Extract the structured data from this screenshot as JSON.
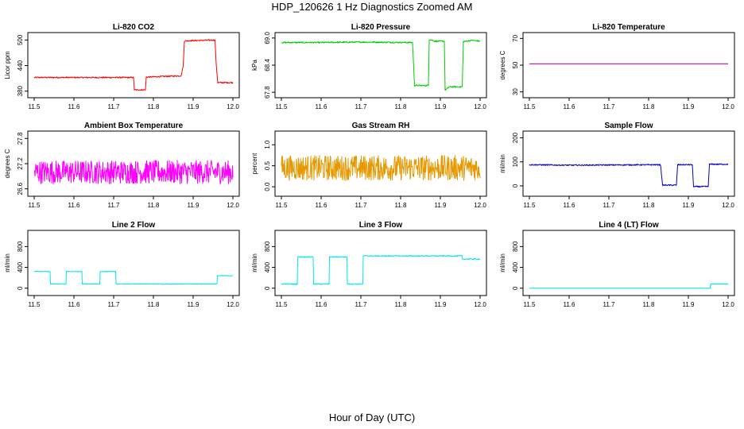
{
  "figure": {
    "title": "HDP_120626  1 Hz Diagnostics Zoomed AM",
    "xlabel": "Hour of Day (UTC)"
  },
  "chart_data": [
    {
      "id": "co2",
      "type": "line",
      "title": "Li-820 CO2",
      "ylabel": "Licor ppm",
      "color": "#ff0000",
      "xlim": [
        11.5,
        12.0
      ],
      "ylim": [
        372,
        510
      ],
      "xticks": [
        11.5,
        11.6,
        11.7,
        11.8,
        11.9,
        12.0
      ],
      "yticks": [
        380,
        440,
        500
      ],
      "noise": 1.5,
      "series": [
        {
          "values": [
            [
              11.5,
              412
            ],
            [
              11.75,
              412
            ],
            [
              11.752,
              383
            ],
            [
              11.78,
              383
            ],
            [
              11.782,
              413
            ],
            [
              11.87,
              416
            ],
            [
              11.875,
              440
            ],
            [
              11.878,
              498
            ],
            [
              11.955,
              500
            ],
            [
              11.958,
              443
            ],
            [
              11.962,
              400
            ],
            [
              12.0,
              400
            ]
          ]
        }
      ]
    },
    {
      "id": "pressure",
      "type": "line",
      "title": "Li-820 Pressure",
      "ylabel": "kPa",
      "color": "#00cc00",
      "xlim": [
        11.5,
        12.0
      ],
      "ylim": [
        67.75,
        69.05
      ],
      "xticks": [
        11.5,
        11.6,
        11.7,
        11.8,
        11.9,
        12.0
      ],
      "yticks": [
        67.8,
        68.4,
        69.0
      ],
      "ytick_labels": [
        "67.8",
        "68.4",
        "69.0"
      ],
      "noise": 0.015,
      "series": [
        {
          "values": [
            [
              11.5,
              68.9
            ],
            [
              11.6,
              68.9
            ],
            [
              11.7,
              68.91
            ],
            [
              11.83,
              68.9
            ],
            [
              11.835,
              67.95
            ],
            [
              11.87,
              67.95
            ],
            [
              11.872,
              68.97
            ],
            [
              11.88,
              68.95
            ],
            [
              11.885,
              68.93
            ],
            [
              11.91,
              68.93
            ],
            [
              11.912,
              67.85
            ],
            [
              11.92,
              67.9
            ],
            [
              11.922,
              67.92
            ],
            [
              11.955,
              67.92
            ],
            [
              11.958,
              68.92
            ],
            [
              11.98,
              68.95
            ],
            [
              12.0,
              68.93
            ]
          ]
        }
      ]
    },
    {
      "id": "temperature",
      "type": "line",
      "title": "Li-820 Temperature",
      "ylabel": "degrees C",
      "color": "#cc00cc",
      "xlim": [
        11.5,
        12.0
      ],
      "ylim": [
        28,
        72
      ],
      "xticks": [
        11.5,
        11.6,
        11.7,
        11.8,
        11.9,
        12.0
      ],
      "yticks": [
        30,
        50,
        70
      ],
      "noise": 0,
      "series": [
        {
          "values": [
            [
              11.5,
              51
            ],
            [
              12.0,
              51
            ]
          ]
        }
      ]
    },
    {
      "id": "ambient",
      "type": "line",
      "title": "Ambient Box Temperature",
      "ylabel": "degrees C",
      "color": "#ff00ff",
      "xlim": [
        11.5,
        12.0
      ],
      "ylim": [
        26.5,
        27.9
      ],
      "xticks": [
        11.5,
        11.6,
        11.7,
        11.8,
        11.9,
        12.0
      ],
      "yticks": [
        26.6,
        27.2,
        27.8
      ],
      "ytick_labels": [
        "26.6",
        "27.2",
        "27.8"
      ],
      "noise": 0.28,
      "series": [
        {
          "values": [
            [
              11.5,
              27.0
            ],
            [
              12.0,
              27.0
            ]
          ]
        }
      ]
    },
    {
      "id": "rh",
      "type": "line",
      "title": "Gas Stream RH",
      "ylabel": "percent",
      "color": "#e69900",
      "xlim": [
        11.5,
        12.0
      ],
      "ylim": [
        -0.15,
        1.25
      ],
      "xticks": [
        11.5,
        11.6,
        11.7,
        11.8,
        11.9,
        12.0
      ],
      "yticks": [
        0.0,
        0.5,
        1.0
      ],
      "ytick_labels": [
        "0.0",
        "0.5",
        "1.0"
      ],
      "noise": 0.3,
      "series": [
        {
          "values": [
            [
              11.5,
              0.45
            ],
            [
              12.0,
              0.45
            ]
          ]
        }
      ]
    },
    {
      "id": "sampleflow",
      "type": "line",
      "title": "Sample Flow",
      "ylabel": "ml/min",
      "color": "#0000cc",
      "xlim": [
        11.5,
        12.0
      ],
      "ylim": [
        -30,
        215
      ],
      "xticks": [
        11.5,
        11.6,
        11.7,
        11.8,
        11.9,
        12.0
      ],
      "yticks": [
        0,
        100,
        200
      ],
      "noise": 2.5,
      "series": [
        {
          "values": [
            [
              11.5,
              88
            ],
            [
              11.6,
              86
            ],
            [
              11.7,
              87
            ],
            [
              11.83,
              88
            ],
            [
              11.835,
              3
            ],
            [
              11.87,
              3
            ],
            [
              11.873,
              88
            ],
            [
              11.91,
              88
            ],
            [
              11.913,
              -3
            ],
            [
              11.95,
              -3
            ],
            [
              11.953,
              90
            ],
            [
              12.0,
              90
            ]
          ]
        }
      ]
    },
    {
      "id": "line2",
      "type": "line",
      "title": "Line 2 Flow",
      "ylabel": "ml/min",
      "color": "#00e5ee",
      "xlim": [
        11.5,
        12.0
      ],
      "ylim": [
        -80,
        1050
      ],
      "xticks": [
        11.5,
        11.6,
        11.7,
        11.8,
        11.9,
        12.0
      ],
      "yticks": [
        0,
        400,
        800
      ],
      "noise": 6,
      "series": [
        {
          "values": [
            [
              11.5,
              320
            ],
            [
              11.54,
              320
            ],
            [
              11.541,
              80
            ],
            [
              11.58,
              80
            ],
            [
              11.581,
              320
            ],
            [
              11.62,
              320
            ],
            [
              11.621,
              80
            ],
            [
              11.665,
              80
            ],
            [
              11.666,
              320
            ],
            [
              11.705,
              320
            ],
            [
              11.706,
              80
            ],
            [
              11.96,
              80
            ],
            [
              11.961,
              240
            ],
            [
              12.0,
              240
            ]
          ]
        }
      ]
    },
    {
      "id": "line3",
      "type": "line",
      "title": "Line 3 Flow",
      "ylabel": "ml/min",
      "color": "#00e5ee",
      "xlim": [
        11.5,
        12.0
      ],
      "ylim": [
        -80,
        1050
      ],
      "xticks": [
        11.5,
        11.6,
        11.7,
        11.8,
        11.9,
        12.0
      ],
      "yticks": [
        0,
        400,
        800
      ],
      "noise": 10,
      "series": [
        {
          "values": [
            [
              11.5,
              80
            ],
            [
              11.54,
              80
            ],
            [
              11.541,
              600
            ],
            [
              11.58,
              600
            ],
            [
              11.581,
              80
            ],
            [
              11.62,
              80
            ],
            [
              11.621,
              600
            ],
            [
              11.665,
              600
            ],
            [
              11.666,
              80
            ],
            [
              11.705,
              80
            ],
            [
              11.706,
              620
            ],
            [
              11.955,
              620
            ],
            [
              11.956,
              560
            ],
            [
              12.0,
              560
            ]
          ]
        }
      ]
    },
    {
      "id": "line4",
      "type": "line",
      "title": "Line 4 (LT) Flow",
      "ylabel": "ml/min",
      "color": "#00e5ee",
      "xlim": [
        11.5,
        12.0
      ],
      "ylim": [
        -80,
        1050
      ],
      "xticks": [
        11.5,
        11.6,
        11.7,
        11.8,
        11.9,
        12.0
      ],
      "yticks": [
        0,
        400,
        800
      ],
      "noise": 0,
      "series": [
        {
          "values": [
            [
              11.5,
              0
            ],
            [
              11.955,
              0
            ],
            [
              11.956,
              80
            ],
            [
              12.0,
              80
            ]
          ]
        }
      ]
    }
  ]
}
